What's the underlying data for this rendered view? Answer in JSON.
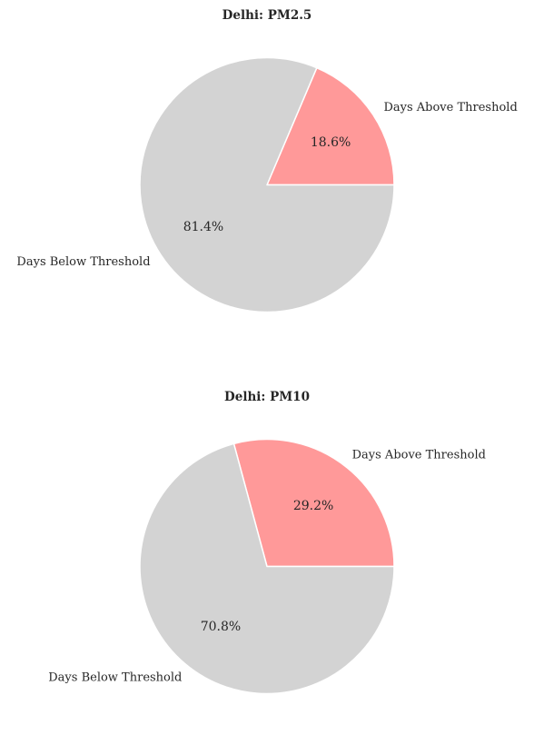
{
  "chart_data": [
    {
      "type": "pie",
      "title": "Delhi: PM2.5",
      "start_angle_deg": 0,
      "slices": [
        {
          "label": "Days Above Threshold",
          "value": 18.6,
          "pct_label": "18.6%",
          "color": "#ff9999"
        },
        {
          "label": "Days Below Threshold",
          "value": 81.4,
          "pct_label": "81.4%",
          "color": "#d3d3d3"
        }
      ]
    },
    {
      "type": "pie",
      "title": "Delhi: PM10",
      "start_angle_deg": 0,
      "slices": [
        {
          "label": "Days Above Threshold",
          "value": 29.2,
          "pct_label": "29.2%",
          "color": "#ff9999"
        },
        {
          "label": "Days Below Threshold",
          "value": 70.8,
          "pct_label": "70.8%",
          "color": "#d3d3d3"
        }
      ]
    }
  ]
}
